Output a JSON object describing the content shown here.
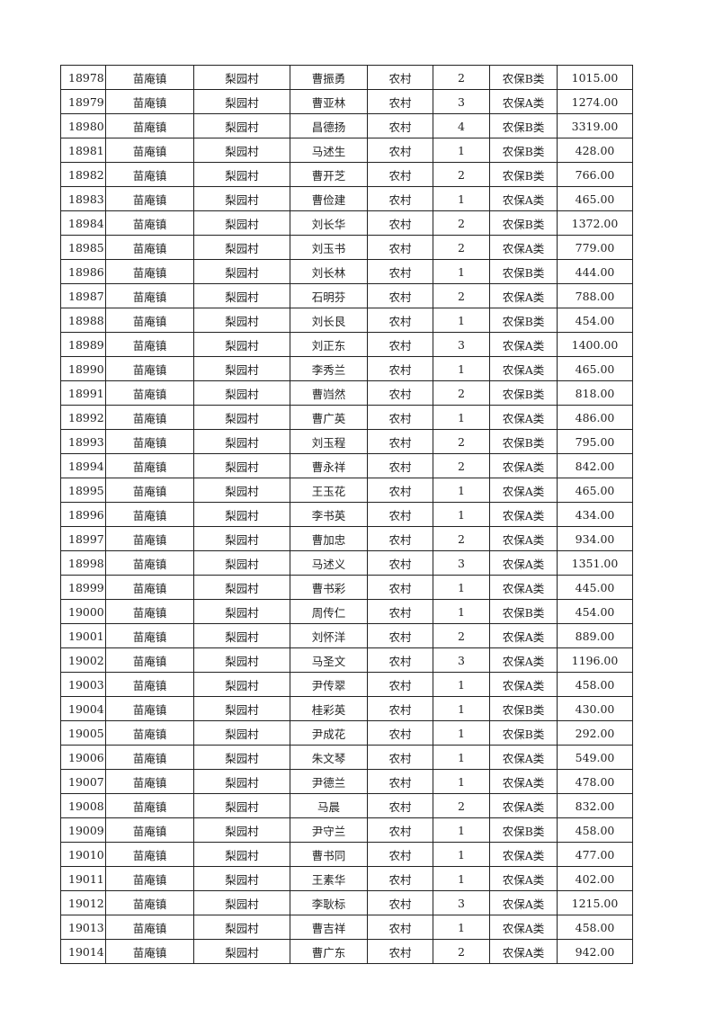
{
  "table": {
    "rows": [
      [
        "18978",
        "苗庵镇",
        "梨园村",
        "曹振勇",
        "农村",
        "2",
        "农保B类",
        "1015.00"
      ],
      [
        "18979",
        "苗庵镇",
        "梨园村",
        "曹亚林",
        "农村",
        "3",
        "农保A类",
        "1274.00"
      ],
      [
        "18980",
        "苗庵镇",
        "梨园村",
        "昌德扬",
        "农村",
        "4",
        "农保B类",
        "3319.00"
      ],
      [
        "18981",
        "苗庵镇",
        "梨园村",
        "马述生",
        "农村",
        "1",
        "农保B类",
        "428.00"
      ],
      [
        "18982",
        "苗庵镇",
        "梨园村",
        "曹开芝",
        "农村",
        "2",
        "农保B类",
        "766.00"
      ],
      [
        "18983",
        "苗庵镇",
        "梨园村",
        "曹俭建",
        "农村",
        "1",
        "农保A类",
        "465.00"
      ],
      [
        "18984",
        "苗庵镇",
        "梨园村",
        "刘长华",
        "农村",
        "2",
        "农保B类",
        "1372.00"
      ],
      [
        "18985",
        "苗庵镇",
        "梨园村",
        "刘玉书",
        "农村",
        "2",
        "农保A类",
        "779.00"
      ],
      [
        "18986",
        "苗庵镇",
        "梨园村",
        "刘长林",
        "农村",
        "1",
        "农保B类",
        "444.00"
      ],
      [
        "18987",
        "苗庵镇",
        "梨园村",
        "石明芬",
        "农村",
        "2",
        "农保A类",
        "788.00"
      ],
      [
        "18988",
        "苗庵镇",
        "梨园村",
        "刘长艮",
        "农村",
        "1",
        "农保B类",
        "454.00"
      ],
      [
        "18989",
        "苗庵镇",
        "梨园村",
        "刘正东",
        "农村",
        "3",
        "农保A类",
        "1400.00"
      ],
      [
        "18990",
        "苗庵镇",
        "梨园村",
        "李秀兰",
        "农村",
        "1",
        "农保A类",
        "465.00"
      ],
      [
        "18991",
        "苗庵镇",
        "梨园村",
        "曹岿然",
        "农村",
        "2",
        "农保B类",
        "818.00"
      ],
      [
        "18992",
        "苗庵镇",
        "梨园村",
        "曹广英",
        "农村",
        "1",
        "农保A类",
        "486.00"
      ],
      [
        "18993",
        "苗庵镇",
        "梨园村",
        "刘玉程",
        "农村",
        "2",
        "农保B类",
        "795.00"
      ],
      [
        "18994",
        "苗庵镇",
        "梨园村",
        "曹永祥",
        "农村",
        "2",
        "农保A类",
        "842.00"
      ],
      [
        "18995",
        "苗庵镇",
        "梨园村",
        "王玉花",
        "农村",
        "1",
        "农保A类",
        "465.00"
      ],
      [
        "18996",
        "苗庵镇",
        "梨园村",
        "李书英",
        "农村",
        "1",
        "农保A类",
        "434.00"
      ],
      [
        "18997",
        "苗庵镇",
        "梨园村",
        "曹加忠",
        "农村",
        "2",
        "农保A类",
        "934.00"
      ],
      [
        "18998",
        "苗庵镇",
        "梨园村",
        "马述义",
        "农村",
        "3",
        "农保A类",
        "1351.00"
      ],
      [
        "18999",
        "苗庵镇",
        "梨园村",
        "曹书彩",
        "农村",
        "1",
        "农保A类",
        "445.00"
      ],
      [
        "19000",
        "苗庵镇",
        "梨园村",
        "周传仁",
        "农村",
        "1",
        "农保B类",
        "454.00"
      ],
      [
        "19001",
        "苗庵镇",
        "梨园村",
        "刘怀洋",
        "农村",
        "2",
        "农保A类",
        "889.00"
      ],
      [
        "19002",
        "苗庵镇",
        "梨园村",
        "马圣文",
        "农村",
        "3",
        "农保A类",
        "1196.00"
      ],
      [
        "19003",
        "苗庵镇",
        "梨园村",
        "尹传翠",
        "农村",
        "1",
        "农保A类",
        "458.00"
      ],
      [
        "19004",
        "苗庵镇",
        "梨园村",
        "桂彩英",
        "农村",
        "1",
        "农保B类",
        "430.00"
      ],
      [
        "19005",
        "苗庵镇",
        "梨园村",
        "尹成花",
        "农村",
        "1",
        "农保B类",
        "292.00"
      ],
      [
        "19006",
        "苗庵镇",
        "梨园村",
        "朱文琴",
        "农村",
        "1",
        "农保A类",
        "549.00"
      ],
      [
        "19007",
        "苗庵镇",
        "梨园村",
        "尹德兰",
        "农村",
        "1",
        "农保A类",
        "478.00"
      ],
      [
        "19008",
        "苗庵镇",
        "梨园村",
        "马晨",
        "农村",
        "2",
        "农保A类",
        "832.00"
      ],
      [
        "19009",
        "苗庵镇",
        "梨园村",
        "尹守兰",
        "农村",
        "1",
        "农保B类",
        "458.00"
      ],
      [
        "19010",
        "苗庵镇",
        "梨园村",
        "曹书同",
        "农村",
        "1",
        "农保A类",
        "477.00"
      ],
      [
        "19011",
        "苗庵镇",
        "梨园村",
        "王素华",
        "农村",
        "1",
        "农保A类",
        "402.00"
      ],
      [
        "19012",
        "苗庵镇",
        "梨园村",
        "李耿标",
        "农村",
        "3",
        "农保A类",
        "1215.00"
      ],
      [
        "19013",
        "苗庵镇",
        "梨园村",
        "曹吉祥",
        "农村",
        "1",
        "农保A类",
        "458.00"
      ],
      [
        "19014",
        "苗庵镇",
        "梨园村",
        "曹广东",
        "农村",
        "2",
        "农保A类",
        "942.00"
      ]
    ]
  }
}
